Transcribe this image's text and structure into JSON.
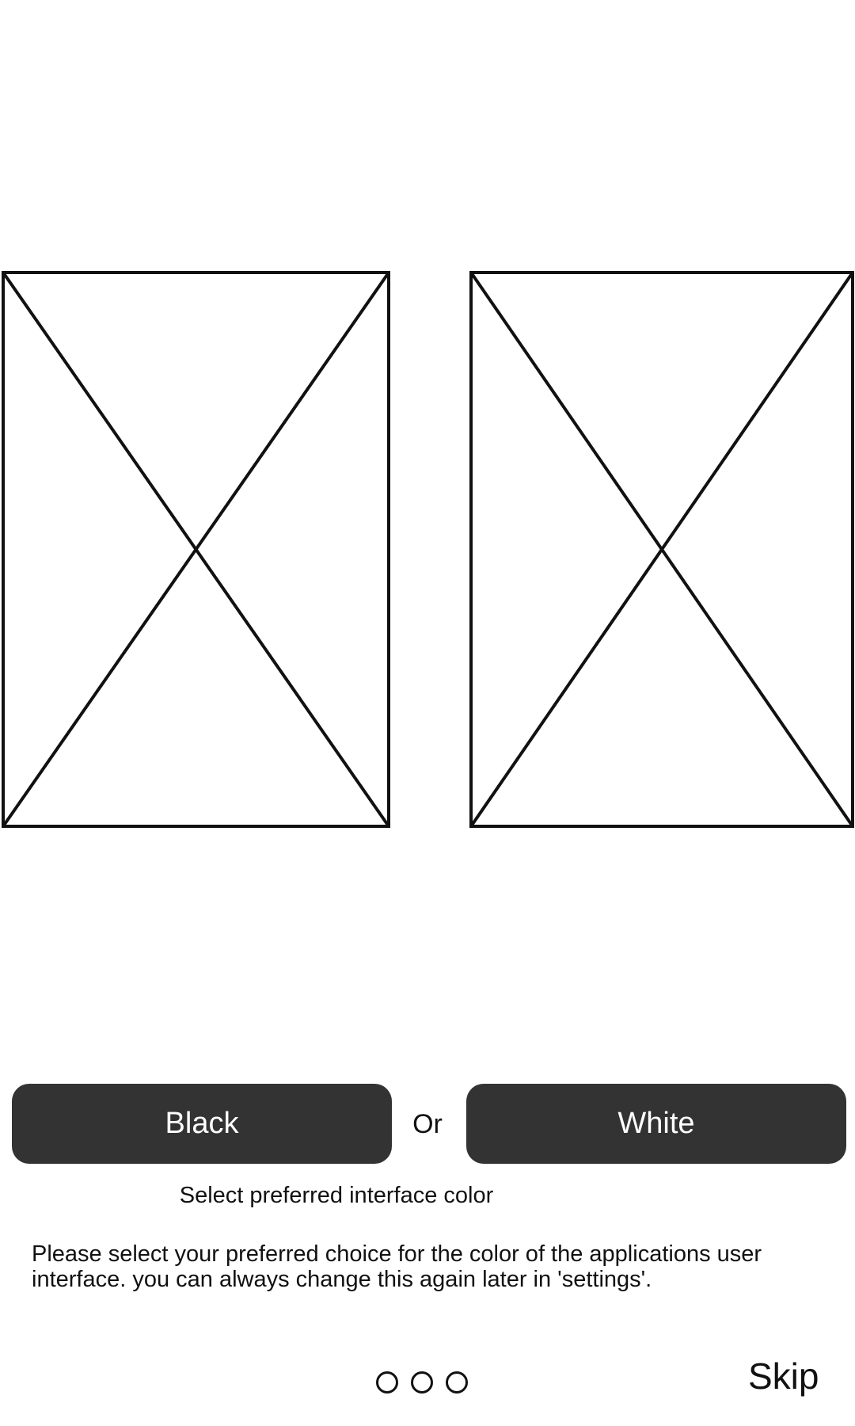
{
  "preview": {
    "left_icon": "image-placeholder-icon",
    "right_icon": "image-placeholder-icon"
  },
  "choices": {
    "black_label": "Black",
    "or_label": "Or",
    "white_label": "White",
    "button_color": "#333333"
  },
  "heading": "Select preferred interface color",
  "description": "Please select your preferred choice for the color of the applications user interface. you can always change this again later in 'settings'.",
  "pager": {
    "page_count": 3
  },
  "skip_label": "Skip"
}
